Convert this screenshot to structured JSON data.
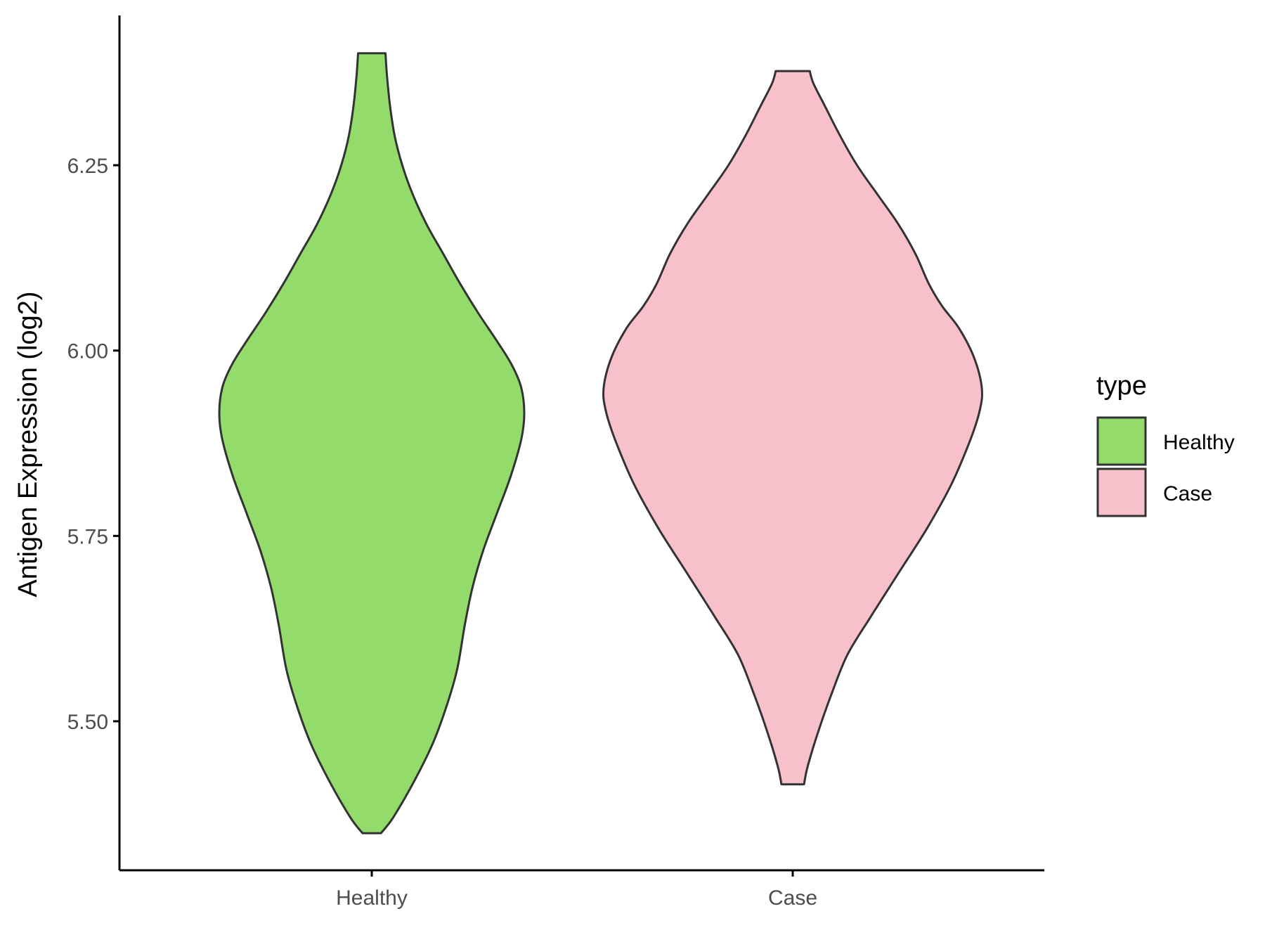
{
  "chart_data": {
    "type": "violin",
    "title": "",
    "xlabel": "",
    "ylabel": "Antigen Expression (log2)",
    "ylim": [
      5.299,
      6.452
    ],
    "yticks": [
      "5.50",
      "5.75",
      "6.00",
      "6.25"
    ],
    "grid": false,
    "categories": [
      "Healthy",
      "Case"
    ],
    "legend": {
      "title": "type",
      "position": "right",
      "items": [
        {
          "label": "Healthy",
          "color": "#93dc6b"
        },
        {
          "label": "Case",
          "color": "#f7c0cb"
        }
      ]
    },
    "series": [
      {
        "category": "Healthy",
        "color": "#93dc6b",
        "min": 5.349,
        "max": 6.401,
        "density_profile": [
          [
            5.349,
            0.06
          ],
          [
            5.37,
            0.14
          ],
          [
            5.42,
            0.28
          ],
          [
            5.47,
            0.4
          ],
          [
            5.52,
            0.49
          ],
          [
            5.57,
            0.56
          ],
          [
            5.63,
            0.61
          ],
          [
            5.68,
            0.66
          ],
          [
            5.73,
            0.73
          ],
          [
            5.78,
            0.82
          ],
          [
            5.83,
            0.91
          ],
          [
            5.88,
            0.98
          ],
          [
            5.915,
            1.0
          ],
          [
            5.95,
            0.98
          ],
          [
            5.98,
            0.92
          ],
          [
            6.01,
            0.83
          ],
          [
            6.05,
            0.7
          ],
          [
            6.09,
            0.58
          ],
          [
            6.13,
            0.47
          ],
          [
            6.17,
            0.36
          ],
          [
            6.21,
            0.27
          ],
          [
            6.25,
            0.2
          ],
          [
            6.29,
            0.15
          ],
          [
            6.33,
            0.12
          ],
          [
            6.37,
            0.1
          ],
          [
            6.401,
            0.09
          ]
        ]
      },
      {
        "category": "Case",
        "color": "#f7c0cb",
        "min": 5.415,
        "max": 6.377,
        "density_profile": [
          [
            5.415,
            0.06
          ],
          [
            5.44,
            0.08
          ],
          [
            5.49,
            0.14
          ],
          [
            5.54,
            0.21
          ],
          [
            5.59,
            0.29
          ],
          [
            5.64,
            0.41
          ],
          [
            5.7,
            0.56
          ],
          [
            5.76,
            0.71
          ],
          [
            5.82,
            0.84
          ],
          [
            5.88,
            0.94
          ],
          [
            5.92,
            0.99
          ],
          [
            5.95,
            1.0
          ],
          [
            5.99,
            0.96
          ],
          [
            6.03,
            0.88
          ],
          [
            6.06,
            0.79
          ],
          [
            6.09,
            0.72
          ],
          [
            6.13,
            0.65
          ],
          [
            6.17,
            0.56
          ],
          [
            6.21,
            0.45
          ],
          [
            6.25,
            0.34
          ],
          [
            6.29,
            0.25
          ],
          [
            6.33,
            0.17
          ],
          [
            6.36,
            0.11
          ],
          [
            6.377,
            0.09
          ]
        ]
      }
    ]
  }
}
